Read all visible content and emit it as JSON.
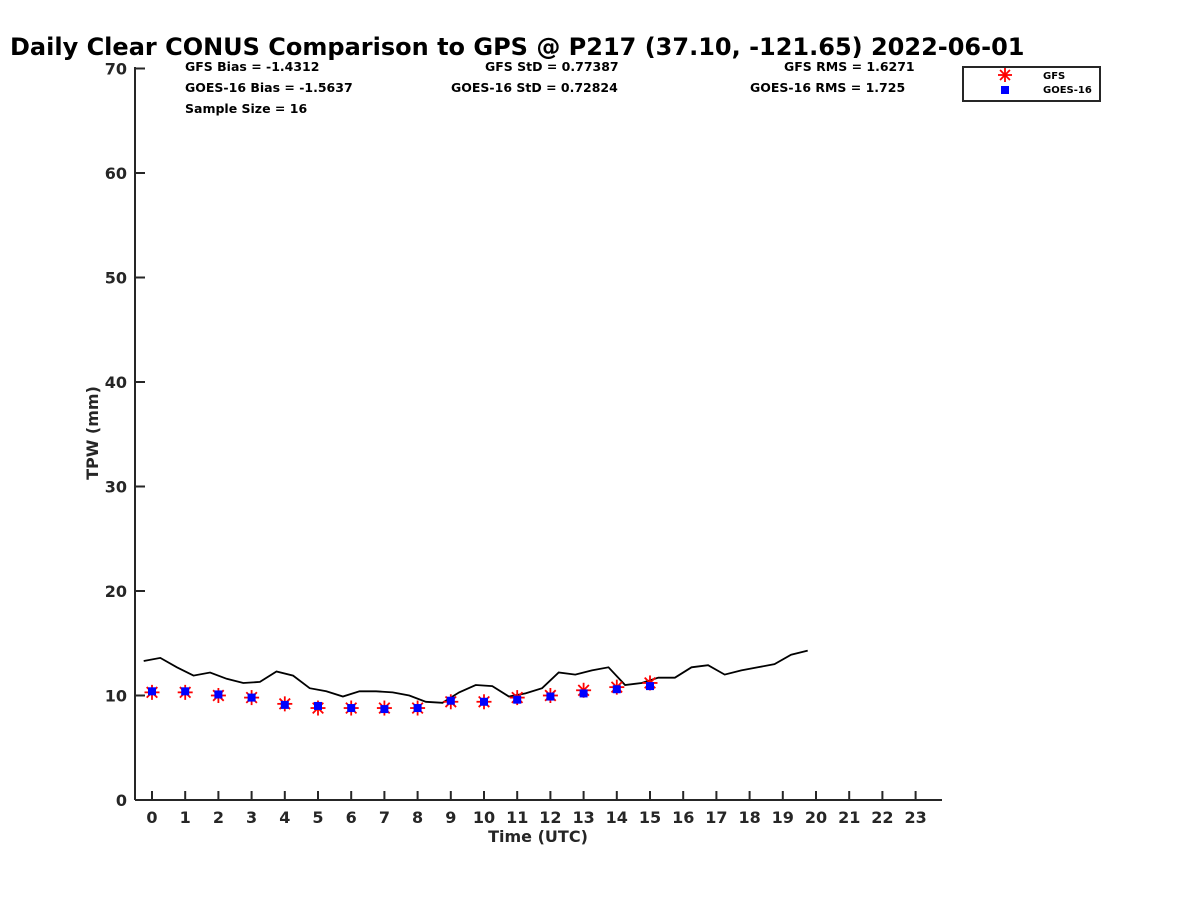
{
  "chart_data": {
    "type": "line",
    "title": "Daily Clear CONUS Comparison to GPS @ P217 (37.10, -121.65) 2022-06-01",
    "xlabel": "Time (UTC)",
    "ylabel": "TPW (mm)",
    "xlim": [
      -0.5,
      23.75
    ],
    "ylim": [
      0,
      70
    ],
    "x_ticks": [
      "0",
      "1",
      "2",
      "3",
      "4",
      "5",
      "6",
      "7",
      "8",
      "9",
      "10",
      "11",
      "12",
      "13",
      "14",
      "15",
      "16",
      "17",
      "18",
      "19",
      "20",
      "21",
      "22",
      "23"
    ],
    "y_ticks": [
      "0",
      "10",
      "20",
      "30",
      "40",
      "50",
      "60",
      "70"
    ],
    "grid": false,
    "legend_position": "top-right",
    "stats": {
      "gfs_bias": "GFS Bias = -1.4312",
      "goes_bias": "GOES-16 Bias = -1.5637",
      "sample_size": "Sample Size = 16",
      "gfs_std": "GFS StD = 0.77387",
      "goes_std": "GOES-16 StD = 0.72824",
      "gfs_rms": "GFS RMS = 1.6271",
      "goes_rms": "GOES-16 RMS = 1.725"
    },
    "series": [
      {
        "name": "GPS",
        "marker": "line",
        "color": "#000000",
        "x": [
          -0.25,
          0.25,
          0.75,
          1.25,
          1.75,
          2.25,
          2.75,
          3.25,
          3.75,
          4.25,
          4.75,
          5.25,
          5.75,
          6.25,
          6.75,
          7.25,
          7.75,
          8.25,
          8.75,
          9.25,
          9.75,
          10.25,
          10.75,
          11.25,
          11.75,
          12.25,
          12.75,
          13.25,
          13.75,
          14.25,
          14.75,
          15.25,
          15.75,
          16.25,
          16.75,
          17.25,
          17.75,
          18.25,
          18.75,
          19.25,
          19.75
        ],
        "y": [
          13.3,
          13.6,
          12.7,
          11.9,
          12.2,
          11.6,
          11.2,
          11.3,
          12.3,
          11.9,
          10.7,
          10.4,
          9.9,
          10.4,
          10.4,
          10.3,
          10.0,
          9.4,
          9.3,
          10.3,
          11.0,
          10.9,
          9.9,
          10.2,
          10.7,
          12.2,
          12.0,
          12.4,
          12.7,
          11.0,
          11.2,
          11.7,
          11.7,
          12.7,
          12.9,
          12.0,
          12.4,
          12.7,
          13.0,
          13.9,
          14.3
        ]
      },
      {
        "name": "GFS",
        "marker": "asterisk",
        "color": "#ff0000",
        "x": [
          0,
          1,
          2,
          3,
          4,
          5,
          6,
          7,
          8,
          9,
          10,
          11,
          12,
          13,
          14,
          15
        ],
        "y": [
          10.3,
          10.3,
          10.0,
          9.8,
          9.2,
          8.8,
          8.8,
          8.8,
          8.8,
          9.4,
          9.4,
          9.8,
          10.0,
          10.5,
          10.8,
          11.2
        ]
      },
      {
        "name": "GOES-16",
        "marker": "square",
        "color": "#0000ff",
        "x": [
          0,
          1,
          2,
          3,
          4,
          5,
          6,
          7,
          8,
          9,
          10,
          11,
          12,
          13,
          14,
          15
        ],
        "y": [
          10.4,
          10.4,
          10.1,
          9.8,
          9.1,
          9.0,
          8.8,
          8.7,
          8.8,
          9.5,
          9.4,
          9.6,
          9.9,
          10.2,
          10.6,
          10.9
        ]
      }
    ]
  }
}
